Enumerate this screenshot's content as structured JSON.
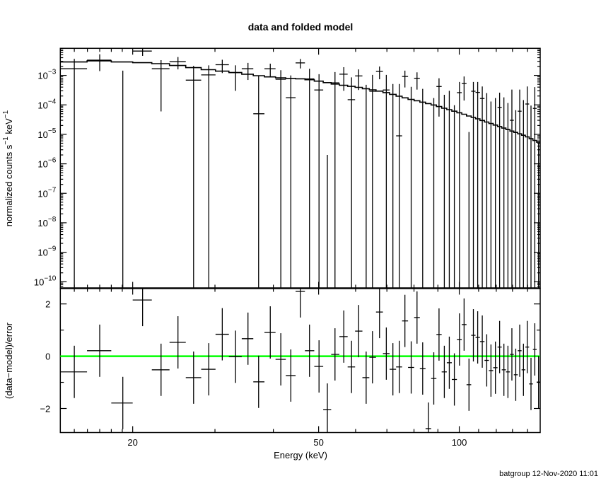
{
  "chart_data": [
    {
      "type": "scatter",
      "title": "data and folded model",
      "xlabel": "Energy (keV)",
      "ylabel": "normalized counts s^-1 keV^-1",
      "ylabel_parts": {
        "main": "normalized counts s",
        "exp1": "−1",
        "mid": " keV",
        "exp2": "−1"
      },
      "xscale": "log",
      "yscale": "log",
      "xlim": [
        14,
        149
      ],
      "ylim": [
        6e-11,
        0.0083
      ],
      "yticks": [
        {
          "exp": "−3",
          "value": 0.001
        },
        {
          "exp": "−4",
          "value": 0.0001
        },
        {
          "exp": "−5",
          "value": 1e-05
        },
        {
          "exp": "−6",
          "value": 1e-06
        },
        {
          "exp": "−7",
          "value": 1e-07
        },
        {
          "exp": "−8",
          "value": 1e-08
        },
        {
          "exp": "−9",
          "value": 1e-09
        },
        {
          "exp": "−10",
          "value": 1e-10
        }
      ],
      "ytick_base": "10",
      "series": [
        {
          "name": "data",
          "style": "crosses with error bars"
        },
        {
          "name": "folded model",
          "style": "histogram step line"
        }
      ]
    },
    {
      "type": "scatter",
      "ylabel": "(data−model)/error",
      "xlabel": "Energy (keV)",
      "xscale": "log",
      "xlim": [
        14,
        149
      ],
      "ylim": [
        -2.92,
        2.6
      ],
      "yticks": [
        {
          "label": "2",
          "value": 2
        },
        {
          "label": "0",
          "value": 0
        },
        {
          "label": "−2",
          "value": -2
        }
      ],
      "xticks": [
        {
          "label": "20",
          "value": 20
        },
        {
          "label": "50",
          "value": 50
        },
        {
          "label": "100",
          "value": 100
        }
      ],
      "zero_line_color": "#00ff00",
      "residual_error": 1.0
    }
  ],
  "bins": {
    "energy_keV": [
      15.0,
      17.0,
      19.05,
      21.0,
      23.0,
      25.0,
      27.0,
      29.1,
      31.1,
      33.2,
      35.3,
      37.2,
      39.4,
      41.5,
      43.6,
      45.7,
      47.8,
      50.1,
      52.2,
      54.2,
      56.6,
      58.8,
      60.9,
      63.2,
      65.2,
      67.5,
      69.8,
      72.1,
      74.4,
      76.5,
      78.9,
      81.2,
      83.5,
      85.9,
      88.2,
      90.5,
      92.9,
      95.2,
      97.6,
      100.1,
      102.4,
      104.9,
      107.2,
      109.5,
      112.0,
      114.5,
      116.9,
      119.5,
      122.0,
      124.6,
      127.1,
      129.6,
      132.1,
      134.7,
      137.2,
      139.8,
      142.4,
      145.1,
      147.8
    ],
    "flux": [
      0.00168,
      0.0033,
      -0.00013,
      0.0067,
      0.00168,
      0.0029,
      0.00069,
      0.00104,
      0.0023,
      0.00125,
      0.00168,
      5e-05,
      0.00168,
      0.00074,
      0.000175,
      0.00266,
      0.00076,
      0.00032,
      -0.00054,
      0.00056,
      0.0011,
      0.00015,
      0.00096,
      -0.00022,
      0.00029,
      0.00137,
      0.00032,
      -5.7e-05,
      8.9e-06,
      0.00092,
      -4.2e-05,
      0.0008,
      -7.7e-05,
      -0.00072,
      -0.0003,
      0.00042,
      -0.00014,
      -8e-06,
      -0.00023,
      0.00026,
      0.00053,
      -0.00032,
      0.00029,
      0.000265,
      0.000165,
      -1.7e-05,
      -0.00011,
      -9.7e-05,
      8.2e-05,
      -0.00016,
      -0.00014,
      3e-05,
      -0.00012,
      6.1e-05,
      -0.00014,
      0.000107,
      -0.00015,
      7.6e-05,
      -0.0003
    ],
    "flux_upper": [
      0.00363,
      0.0052,
      0.00145,
      0.0088,
      0.0033,
      0.0042,
      0.0021,
      0.0022,
      0.0034,
      0.0022,
      0.00266,
      0.001,
      0.0025,
      0.0015,
      0.001,
      0.0036,
      0.00168,
      0.0011,
      2e-06,
      0.0013,
      0.0019,
      0.00086,
      0.0016,
      0.00048,
      0.00104,
      0.002,
      0.00104,
      0.00051,
      0.00051,
      0.00145,
      0.00041,
      0.00127,
      0.00035,
      -0.00042,
      0.00017,
      0.0008,
      0.00022,
      0.0003,
      9.7e-05,
      0.0006,
      0.00092,
      1.2e-05,
      0.0006,
      0.0006,
      0.00042,
      0.00025,
      0.00013,
      0.00017,
      0.00026,
      0.00018,
      0.000116,
      0.00033,
      6.6e-05,
      0.00033,
      0.000145,
      0.00042,
      9.5e-05,
      0.0004,
      5e-06
    ],
    "model": [
      0.00286,
      0.0031,
      0.00286,
      0.0027,
      0.0025,
      0.00217,
      0.00184,
      0.00156,
      0.00139,
      0.00125,
      0.0011,
      0.00098,
      0.00089,
      0.00083,
      0.00079,
      0.000766,
      0.000713,
      0.00064,
      0.000569,
      0.000509,
      0.000462,
      0.000425,
      0.000392,
      0.000354,
      0.000324,
      0.000293,
      0.000261,
      0.000227,
      0.000197,
      0.000173,
      0.000153,
      0.000138,
      0.000124,
      0.000111,
      9.9e-05,
      8.8e-05,
      7.7e-05,
      6.9e-05,
      6.1e-05,
      5.4e-05,
      4.8e-05,
      4.2e-05,
      3.76e-05,
      3.35e-05,
      2.96e-05,
      2.62e-05,
      2.33e-05,
      2.07e-05,
      1.84e-05,
      1.63e-05,
      1.45e-05,
      1.29e-05,
      1.16e-05,
      1.04e-05,
      9.3e-06,
      8.2e-06,
      7.1e-06,
      6.2e-06,
      5.4e-06
    ],
    "residual": [
      -0.6,
      0.21,
      -1.79,
      2.15,
      -0.52,
      0.53,
      -0.82,
      -0.5,
      0.84,
      -0.02,
      0.67,
      -0.98,
      0.91,
      -0.12,
      -0.74,
      2.48,
      0.21,
      -0.39,
      -2.04,
      0.07,
      0.75,
      -0.41,
      0.96,
      -0.82,
      -0.04,
      1.69,
      0.1,
      -0.5,
      -0.41,
      1.35,
      -0.43,
      1.48,
      -0.47,
      -2.77,
      -0.85,
      0.83,
      -0.6,
      -0.25,
      -0.89,
      0.64,
      1.21,
      -1.09,
      0.8,
      0.72,
      0.56,
      -0.16,
      -0.55,
      -0.44,
      0.35,
      -0.52,
      -0.6,
      0.07,
      -0.71,
      0.21,
      -0.52,
      0.35,
      -1.06,
      0.26,
      -0.99
    ]
  },
  "footer": "batgroup 12-Nov-2020 11:01",
  "colors": {
    "axes": "#000000",
    "zero_line": "#00ff00",
    "data": "#000000"
  }
}
